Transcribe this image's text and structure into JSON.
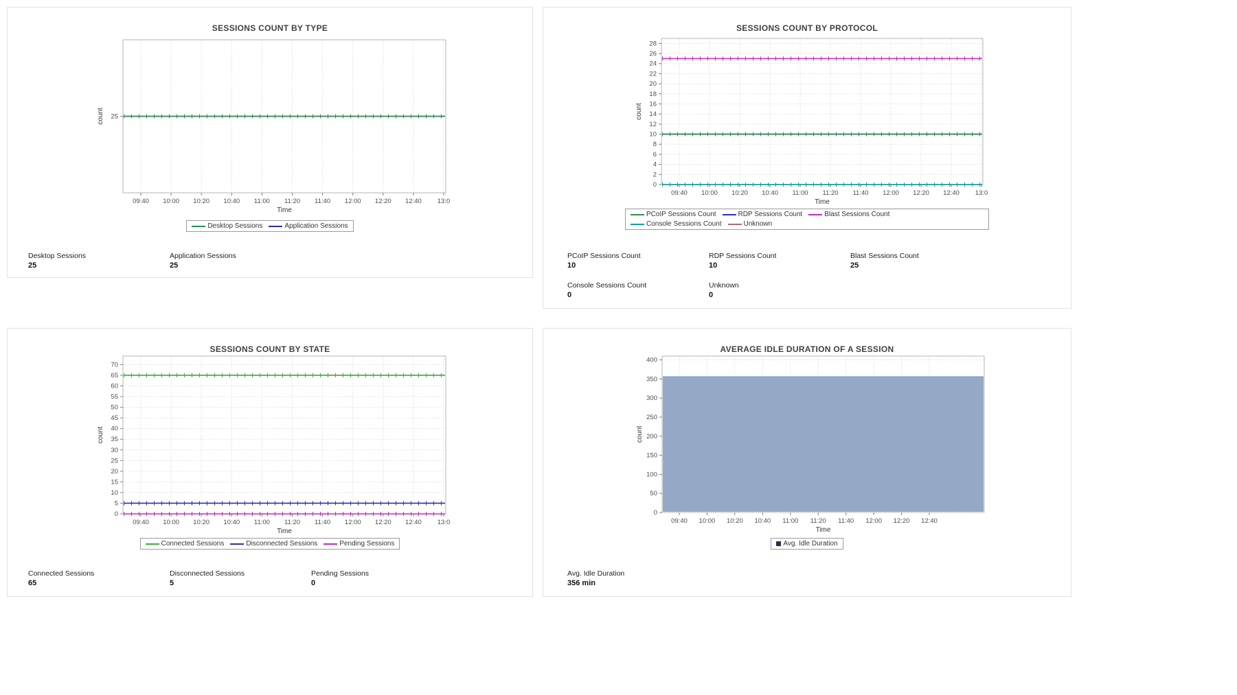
{
  "page": {
    "background": "#ffffff"
  },
  "panels": [
    {
      "stats": [
        {
          "label": "Desktop Sessions",
          "value": "25"
        },
        {
          "label": "Application Sessions",
          "value": "25"
        }
      ]
    },
    {
      "stats": [
        {
          "label": "PCoIP Sessions Count",
          "value": "10"
        },
        {
          "label": "RDP Sessions Count",
          "value": "10"
        },
        {
          "label": "Blast Sessions Count",
          "value": "25"
        },
        {
          "label": "Console Sessions Count",
          "value": "0"
        },
        {
          "label": "Unknown",
          "value": "0"
        }
      ]
    },
    {
      "stats": [
        {
          "label": "Connected Sessions",
          "value": "65"
        },
        {
          "label": "Disconnected Sessions",
          "value": "5"
        },
        {
          "label": "Pending Sessions",
          "value": "0"
        }
      ]
    },
    {
      "stats": [
        {
          "label": "Avg. Idle Duration",
          "value": "356 min"
        }
      ]
    }
  ],
  "chart_data": [
    {
      "type": "line",
      "title": "SESSIONS COUNT BY TYPE",
      "xlabel": "Time",
      "ylabel": "count",
      "x": [
        "09:40",
        "10:00",
        "10:20",
        "10:40",
        "11:00",
        "11:20",
        "11:40",
        "12:00",
        "12:20",
        "12:40",
        "13:0"
      ],
      "y_ticks": [
        25
      ],
      "ylim": [
        24.5,
        25.5
      ],
      "grid": true,
      "legend_position": "bottom",
      "series": [
        {
          "name": "Desktop Sessions",
          "color": "#2E8B50",
          "constant_value": 25
        },
        {
          "name": "Application Sessions",
          "color": "#2B2BB8",
          "constant_value": 25
        }
      ]
    },
    {
      "type": "line",
      "title": "SESSIONS COUNT BY PROTOCOL",
      "xlabel": "Time",
      "ylabel": "count",
      "x": [
        "09:40",
        "10:00",
        "10:20",
        "10:40",
        "11:00",
        "11:20",
        "11:40",
        "12:00",
        "12:20",
        "12:40",
        "13:0"
      ],
      "y_ticks": [
        0,
        2,
        4,
        6,
        8,
        10,
        12,
        14,
        16,
        18,
        20,
        22,
        24,
        26,
        28
      ],
      "ylim": [
        0,
        29
      ],
      "grid": true,
      "legend_position": "bottom",
      "series": [
        {
          "name": "PCoIP Sessions Count",
          "color": "#2E8B50",
          "constant_value": 10
        },
        {
          "name": "RDP Sessions Count",
          "color": "#2B2BB8",
          "constant_value": 10
        },
        {
          "name": "Blast Sessions Count",
          "color": "#C626C6",
          "constant_value": 25
        },
        {
          "name": "Console Sessions Count",
          "color": "#00A3A3",
          "constant_value": 0
        },
        {
          "name": "Unknown",
          "color": "#B36B6B",
          "constant_value": 0
        }
      ]
    },
    {
      "type": "line",
      "title": "SESSIONS COUNT BY STATE",
      "xlabel": "Time",
      "ylabel": "count",
      "x": [
        "09:40",
        "10:00",
        "10:20",
        "10:40",
        "11:00",
        "11:20",
        "11:40",
        "12:00",
        "12:20",
        "12:40",
        "13:0"
      ],
      "y_ticks": [
        0,
        5,
        10,
        15,
        20,
        25,
        30,
        35,
        40,
        45,
        50,
        55,
        60,
        65,
        70
      ],
      "ylim": [
        0,
        74
      ],
      "grid": true,
      "legend_position": "bottom",
      "series": [
        {
          "name": "Connected Sessions",
          "color": "#3AAB3A",
          "constant_value": 65
        },
        {
          "name": "Disconnected Sessions",
          "color": "#2B2BB8",
          "constant_value": 5
        },
        {
          "name": "Pending Sessions",
          "color": "#C626C6",
          "constant_value": 0
        }
      ]
    },
    {
      "type": "area",
      "title": "AVERAGE IDLE DURATION OF A SESSION",
      "xlabel": "Time",
      "ylabel": "count",
      "x": [
        "09:40",
        "10:00",
        "10:20",
        "10:40",
        "11:00",
        "11:20",
        "11:40",
        "12:00",
        "12:20",
        "12:40"
      ],
      "y_ticks": [
        0,
        50,
        100,
        150,
        200,
        250,
        300,
        350,
        400
      ],
      "ylim": [
        0,
        410
      ],
      "grid": true,
      "legend_position": "bottom",
      "series": [
        {
          "name": "Avg. Idle Duration",
          "color": "#8398B8",
          "fill": "#93A9C6",
          "legend_marker": "square",
          "legend_marker_color": "#26314F",
          "constant_value": 356
        }
      ]
    }
  ]
}
